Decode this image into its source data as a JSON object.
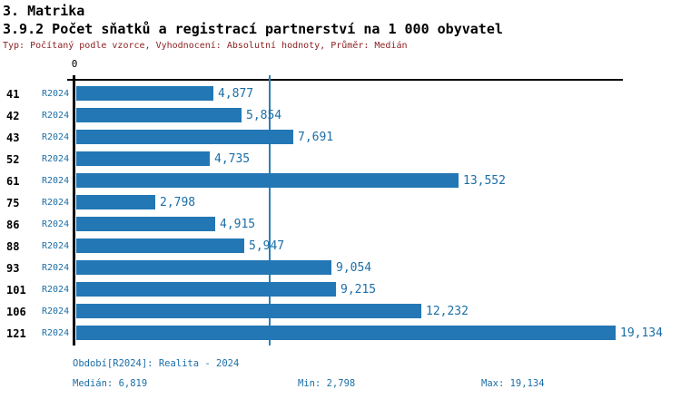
{
  "header": {
    "section_title": "3. Matrika",
    "chart_title": "3.9.2 Počet sňatků a registrací partnerství na 1 000 obyvatel",
    "meta": "Typ: Počítaný podle vzorce, Vyhodnocení: Absolutní hodnoty, Průměr: Medián"
  },
  "chart_data": {
    "type": "bar",
    "orientation": "horizontal",
    "title": "3.9.2 Počet sňatků a registrací partnerství na 1 000 obyvatel",
    "categories": [
      "41",
      "42",
      "43",
      "52",
      "61",
      "75",
      "86",
      "88",
      "93",
      "101",
      "106",
      "121"
    ],
    "series": [
      {
        "name": "R2024",
        "values": [
          4.877,
          5.854,
          7.691,
          4.735,
          13.552,
          2.798,
          4.915,
          5.947,
          9.054,
          9.215,
          12.232,
          19.134
        ],
        "value_labels": [
          "4,877",
          "5,854",
          "7,691",
          "4,735",
          "13,552",
          "2,798",
          "4,915",
          "5,947",
          "9,054",
          "9,215",
          "12,232",
          "19,134"
        ]
      }
    ],
    "x_axis": {
      "zero_label": "0",
      "xlim": [
        0,
        19.4
      ],
      "grid": false
    },
    "median_value": 6.819,
    "legend_position": "none",
    "colors": {
      "bar": "#2377b4",
      "median_line": "#2e7fb5",
      "value_text": "#1b6ea6",
      "axis": "#000000"
    }
  },
  "footer": {
    "period": "Období[R2024]: Realita - 2024",
    "median": "Medián: 6,819",
    "min": "Min: 2,798",
    "max": "Max: 19,134"
  }
}
